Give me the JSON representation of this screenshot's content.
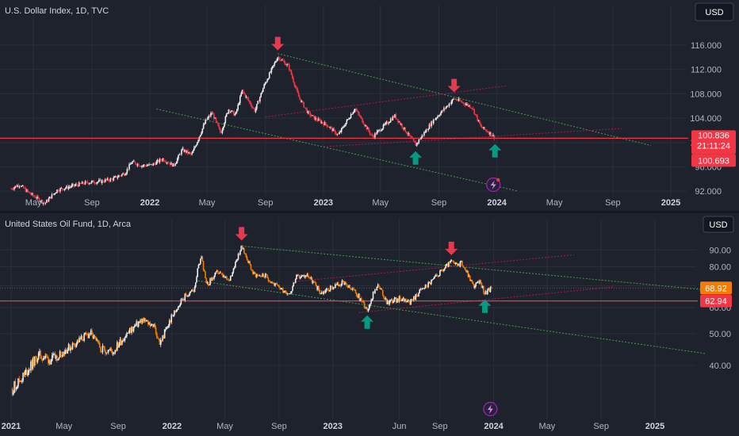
{
  "colors": {
    "background": "#1e222d",
    "grid": "#2a2e39",
    "up": "#eeeeee",
    "down_dxy": "#f23645",
    "down_uso": "#f57c00",
    "red_line": "#f23645",
    "channel_green": "#4caf50",
    "channel_red": "#c2185b",
    "arrow_down": "#e53950",
    "arrow_up": "#089981",
    "badge_orange": "#f57c00",
    "badge_red": "#f23645"
  },
  "chart_data": [
    {
      "type": "candlestick",
      "title": "U.S. Dollar Index, 1D, TVC",
      "currency": "USD",
      "y_ticks": [
        "116.000",
        "112.000",
        "108.000",
        "104.000",
        "100.000",
        "96.000",
        "92.000"
      ],
      "y_tick_values": [
        116,
        112,
        108,
        104,
        100,
        96,
        92
      ],
      "ylim": [
        91.5,
        119.5
      ],
      "x_ticks": [
        "May",
        "Sep",
        "2022",
        "May",
        "Sep",
        "2023",
        "May",
        "Sep",
        "2024",
        "May",
        "Sep",
        "2025"
      ],
      "x_ticks_bold": [
        false,
        false,
        true,
        false,
        false,
        true,
        false,
        false,
        true,
        false,
        false,
        true
      ],
      "x_tick_dates": [
        "2021-05-01",
        "2021-09-01",
        "2022-01-01",
        "2022-05-01",
        "2022-09-01",
        "2023-01-01",
        "2023-05-01",
        "2023-09-01",
        "2024-01-01",
        "2024-05-01",
        "2024-09-01",
        "2025-01-01"
      ],
      "last_price": "100.836",
      "countdown": "21:11:24",
      "support_line": "100.693",
      "support_value": 100.693,
      "last_value": 100.836,
      "price_path": [
        [
          "2021-03-15",
          92.4
        ],
        [
          "2021-04-01",
          93.1
        ],
        [
          "2021-04-20",
          91.8
        ],
        [
          "2021-05-25",
          90.0
        ],
        [
          "2021-06-20",
          92.2
        ],
        [
          "2021-07-20",
          92.8
        ],
        [
          "2021-08-20",
          93.4
        ],
        [
          "2021-09-20",
          93.6
        ],
        [
          "2021-10-15",
          94.0
        ],
        [
          "2021-11-10",
          95.0
        ],
        [
          "2021-11-24",
          96.8
        ],
        [
          "2021-12-15",
          96.2
        ],
        [
          "2022-01-05",
          96.3
        ],
        [
          "2022-01-28",
          97.3
        ],
        [
          "2022-02-20",
          96.2
        ],
        [
          "2022-03-10",
          98.8
        ],
        [
          "2022-03-30",
          98.0
        ],
        [
          "2022-04-28",
          103.5
        ],
        [
          "2022-05-12",
          104.9
        ],
        [
          "2022-05-30",
          101.5
        ],
        [
          "2022-06-15",
          105.5
        ],
        [
          "2022-06-30",
          104.5
        ],
        [
          "2022-07-14",
          108.5
        ],
        [
          "2022-08-10",
          105.2
        ],
        [
          "2022-08-29",
          109.3
        ],
        [
          "2022-09-27",
          114.1
        ],
        [
          "2022-10-20",
          112.5
        ],
        [
          "2022-11-10",
          107.5
        ],
        [
          "2022-11-30",
          104.8
        ],
        [
          "2022-12-15",
          103.9
        ],
        [
          "2023-01-10",
          102.8
        ],
        [
          "2023-02-01",
          101.2
        ],
        [
          "2023-03-08",
          105.6
        ],
        [
          "2023-04-14",
          100.9
        ],
        [
          "2023-05-31",
          104.4
        ],
        [
          "2023-07-14",
          99.6
        ],
        [
          "2023-08-20",
          103.6
        ],
        [
          "2023-10-03",
          107.2
        ],
        [
          "2023-10-20",
          106.6
        ],
        [
          "2023-11-10",
          105.8
        ],
        [
          "2023-11-28",
          102.6
        ],
        [
          "2023-12-18",
          101.5
        ],
        [
          "2023-12-28",
          100.8
        ]
      ],
      "markers": [
        {
          "kind": "down",
          "date": "2022-09-27",
          "value": 114.1
        },
        {
          "kind": "down",
          "date": "2023-10-03",
          "value": 107.2
        },
        {
          "kind": "up",
          "date": "2023-07-14",
          "value": 99.6
        },
        {
          "kind": "up",
          "date": "2023-12-28",
          "value": 100.8
        }
      ],
      "trendlines": [
        {
          "color": "channel_green",
          "from": [
            "2022-09-27",
            114.6
          ],
          "to": [
            "2024-11-20",
            99.5
          ]
        },
        {
          "color": "channel_green",
          "from": [
            "2022-01-15",
            105.5
          ],
          "to": [
            "2024-02-15",
            92.0
          ]
        },
        {
          "color": "channel_red",
          "from": [
            "2022-09-01",
            104.2
          ],
          "to": [
            "2024-01-20",
            109.3
          ]
        },
        {
          "color": "channel_red",
          "from": [
            "2023-01-01",
            99.3
          ],
          "to": [
            "2024-09-20",
            102.3
          ]
        }
      ]
    },
    {
      "type": "candlestick",
      "title": "United States Oil Fund, 1D, Arca",
      "currency": "USD",
      "y_ticks": [
        "90.00",
        "80.00",
        "70.00",
        "60.00",
        "50.00",
        "40.00"
      ],
      "y_tick_values": [
        90,
        80,
        70,
        60,
        50,
        40
      ],
      "ylim": [
        28.5,
        98
      ],
      "log_scale": true,
      "x_ticks": [
        "2021",
        "May",
        "Sep",
        "2022",
        "May",
        "Sep",
        "2023",
        "Jun",
        "Sep",
        "2024",
        "May",
        "Sep",
        "2025"
      ],
      "x_ticks_bold": [
        true,
        false,
        false,
        true,
        false,
        false,
        true,
        false,
        false,
        true,
        false,
        false,
        true
      ],
      "x_tick_dates": [
        "2021-01-01",
        "2021-05-01",
        "2021-09-01",
        "2022-01-01",
        "2022-05-01",
        "2022-09-01",
        "2023-01-01",
        "2023-06-01",
        "2023-09-01",
        "2024-01-01",
        "2024-05-01",
        "2024-09-01",
        "2025-01-01"
      ],
      "last_price": "68.92",
      "support_line": "62.94",
      "support_value": 62.94,
      "last_value": 68.92,
      "price_path": [
        [
          "2021-01-04",
          34.0
        ],
        [
          "2021-02-01",
          37.5
        ],
        [
          "2021-03-05",
          43.0
        ],
        [
          "2021-04-01",
          41.5
        ],
        [
          "2021-05-15",
          45.5
        ],
        [
          "2021-06-30",
          50.2
        ],
        [
          "2021-07-20",
          45.5
        ],
        [
          "2021-08-20",
          44.0
        ],
        [
          "2021-09-15",
          49.0
        ],
        [
          "2021-10-25",
          55.0
        ],
        [
          "2021-11-20",
          53.0
        ],
        [
          "2021-12-05",
          46.5
        ],
        [
          "2021-12-30",
          55.5
        ],
        [
          "2022-01-25",
          64.0
        ],
        [
          "2022-02-20",
          68.0
        ],
        [
          "2022-03-08",
          87.0
        ],
        [
          "2022-03-20",
          70.0
        ],
        [
          "2022-04-15",
          77.0
        ],
        [
          "2022-05-10",
          72.0
        ],
        [
          "2022-06-08",
          92.0
        ],
        [
          "2022-07-05",
          76.0
        ],
        [
          "2022-08-01",
          75.0
        ],
        [
          "2022-08-25",
          70.0
        ],
        [
          "2022-09-26",
          66.5
        ],
        [
          "2022-10-10",
          74.0
        ],
        [
          "2022-11-05",
          75.5
        ],
        [
          "2022-12-05",
          66.5
        ],
        [
          "2023-01-20",
          71.5
        ],
        [
          "2023-02-20",
          67.0
        ],
        [
          "2023-03-20",
          59.5
        ],
        [
          "2023-04-12",
          70.5
        ],
        [
          "2023-05-04",
          62.5
        ],
        [
          "2023-06-10",
          64.0
        ],
        [
          "2023-06-27",
          62.5
        ],
        [
          "2023-07-20",
          68.0
        ],
        [
          "2023-08-15",
          72.5
        ],
        [
          "2023-09-27",
          83.0
        ],
        [
          "2023-10-10",
          80.5
        ],
        [
          "2023-10-20",
          82.5
        ],
        [
          "2023-11-16",
          70.0
        ],
        [
          "2023-12-01",
          71.5
        ],
        [
          "2023-12-12",
          66.5
        ],
        [
          "2023-12-28",
          68.9
        ]
      ],
      "markers": [
        {
          "kind": "down",
          "date": "2022-06-08",
          "value": 92.0
        },
        {
          "kind": "down",
          "date": "2023-09-27",
          "value": 83.0
        },
        {
          "kind": "up",
          "date": "2023-03-20",
          "value": 59.5
        },
        {
          "kind": "up",
          "date": "2023-12-12",
          "value": 66.5
        }
      ],
      "trendlines": [
        {
          "color": "channel_green",
          "from": [
            "2022-06-08",
            92.5
          ],
          "to": [
            "2025-04-25",
            68.0
          ]
        },
        {
          "color": "channel_green",
          "from": [
            "2022-03-01",
            72.5
          ],
          "to": [
            "2025-04-25",
            43.5
          ]
        },
        {
          "color": "channel_red",
          "from": [
            "2022-10-01",
            72.0
          ],
          "to": [
            "2024-07-01",
            87.0
          ]
        },
        {
          "color": "channel_red",
          "from": [
            "2023-03-01",
            58.0
          ],
          "to": [
            "2024-10-01",
            69.5
          ]
        }
      ]
    }
  ]
}
